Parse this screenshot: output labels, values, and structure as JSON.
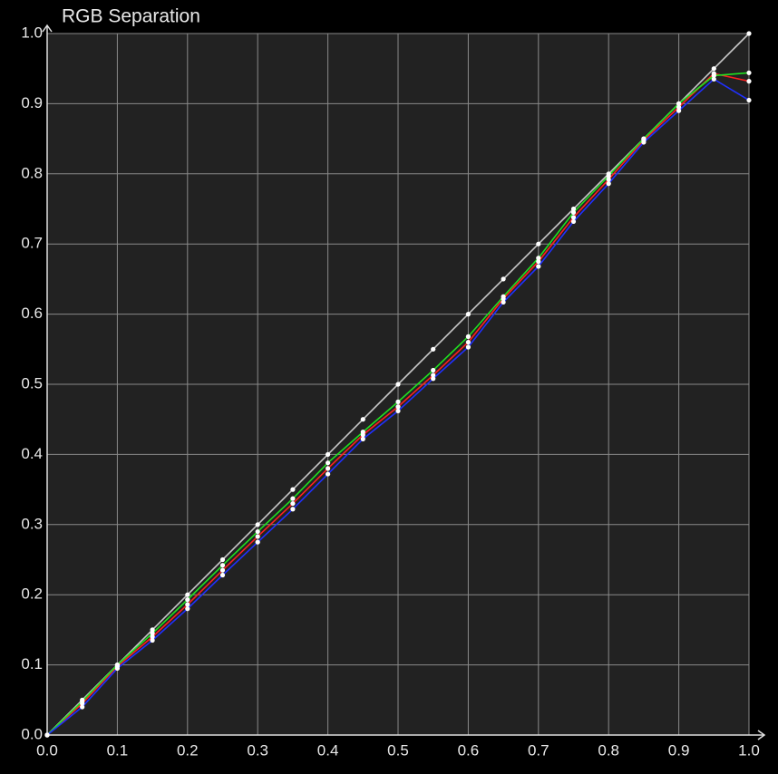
{
  "chart_data": {
    "type": "line",
    "title": "RGB Separation",
    "x": [
      0,
      0.05,
      0.1,
      0.15,
      0.2,
      0.25,
      0.3,
      0.35,
      0.4,
      0.45,
      0.5,
      0.55,
      0.6,
      0.65,
      0.7,
      0.75,
      0.8,
      0.85,
      0.9,
      0.95,
      1
    ],
    "series": [
      {
        "color": "#c8c8c8",
        "values": [
          0,
          0.05,
          0.1,
          0.15,
          0.2,
          0.25,
          0.3,
          0.35,
          0.4,
          0.45,
          0.5,
          0.55,
          0.6,
          0.65,
          0.7,
          0.75,
          0.8,
          0.85,
          0.9,
          0.95,
          1
        ]
      },
      {
        "color": "#ff2020",
        "values": [
          0,
          0.045,
          0.098,
          0.14,
          0.186,
          0.235,
          0.283,
          0.33,
          0.38,
          0.428,
          0.468,
          0.513,
          0.56,
          0.622,
          0.675,
          0.738,
          0.792,
          0.848,
          0.895,
          0.943,
          0.932
        ]
      },
      {
        "color": "#20e020",
        "values": [
          0,
          0.048,
          0.1,
          0.145,
          0.193,
          0.242,
          0.29,
          0.337,
          0.388,
          0.432,
          0.475,
          0.52,
          0.568,
          0.625,
          0.68,
          0.745,
          0.797,
          0.85,
          0.9,
          0.94,
          0.944
        ]
      },
      {
        "color": "#2030ff",
        "values": [
          0,
          0.04,
          0.095,
          0.135,
          0.18,
          0.228,
          0.275,
          0.322,
          0.372,
          0.422,
          0.462,
          0.508,
          0.553,
          0.617,
          0.668,
          0.732,
          0.786,
          0.845,
          0.89,
          0.935,
          0.905
        ]
      }
    ],
    "xlim": [
      0,
      1
    ],
    "ylim": [
      0,
      1
    ],
    "xticks": [
      {
        "value": 0,
        "label": "0.0"
      },
      0.1,
      0.2,
      0.3,
      0.4,
      0.5,
      0.6,
      0.7,
      0.8,
      0.9,
      {
        "value": 1,
        "label": "1.0"
      }
    ],
    "yticks": [
      {
        "value": 0,
        "label": "0.0"
      },
      0.1,
      0.2,
      0.3,
      0.4,
      0.5,
      0.6,
      0.7,
      0.8,
      0.9,
      {
        "value": 1,
        "label": "1.0"
      }
    ],
    "grid": true
  }
}
